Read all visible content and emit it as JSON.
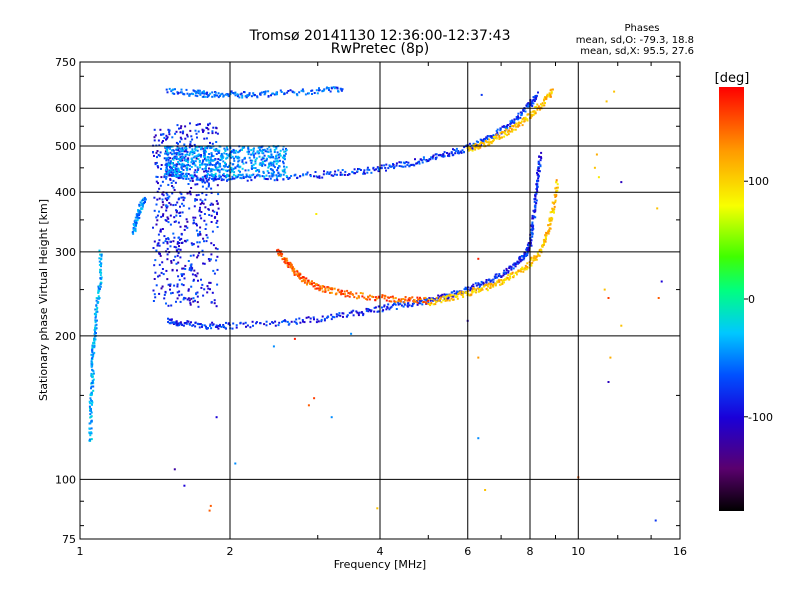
{
  "chart_data": {
    "type": "scatter",
    "title": "Tromsø 20141130 12:36:00-12:37:43",
    "subtitle": "RwPretec (8p)",
    "xlabel": "Frequency [MHz]",
    "ylabel": "Stationary phase Virtual Height [km]",
    "x_scale": "log",
    "y_scale": "log",
    "xlim": [
      1,
      16
    ],
    "ylim": [
      75,
      750
    ],
    "x_ticks": [
      1,
      2,
      4,
      6,
      8,
      10,
      16
    ],
    "x_tick_labels": [
      "1",
      "2",
      "4",
      "6",
      "8",
      "10",
      "16"
    ],
    "y_ticks": [
      75,
      100,
      200,
      300,
      400,
      500,
      600,
      750
    ],
    "y_tick_labels": [
      "75",
      "100",
      "200",
      "300",
      "400",
      "500",
      "600",
      "750"
    ],
    "grid": true,
    "stats": {
      "heading": "Phases",
      "line_o": "mean, sd,O: -79.3, 18.8",
      "line_x": "mean, sd,X:  95.5, 27.6"
    },
    "colorbar": {
      "label": "[deg]",
      "range": [
        -180,
        180
      ],
      "ticks": [
        100,
        0,
        -100
      ],
      "tick_labels": [
        "100",
        "0",
        "-100"
      ]
    },
    "traces": [
      {
        "name": "",
        "phase": -95,
        "points": [
          [
            1.5,
            215
          ],
          [
            1.6,
            212
          ],
          [
            1.8,
            210
          ],
          [
            2.0,
            210
          ],
          [
            2.5,
            213
          ],
          [
            3.0,
            217
          ],
          [
            3.5,
            222
          ],
          [
            4.0,
            228
          ],
          [
            4.5,
            233
          ],
          [
            5.0,
            237
          ],
          [
            5.5,
            243
          ],
          [
            6.0,
            250
          ],
          [
            6.5,
            258
          ],
          [
            7.0,
            268
          ],
          [
            7.5,
            282
          ],
          [
            7.8,
            295
          ],
          [
            8.0,
            310
          ],
          [
            8.1,
            340
          ],
          [
            8.2,
            380
          ],
          [
            8.3,
            430
          ],
          [
            8.4,
            480
          ]
        ]
      },
      {
        "name": "",
        "phase": 110,
        "points": [
          [
            5.0,
            235
          ],
          [
            5.5,
            240
          ],
          [
            6.0,
            246
          ],
          [
            6.5,
            252
          ],
          [
            7.0,
            260
          ],
          [
            7.5,
            270
          ],
          [
            8.0,
            283
          ],
          [
            8.4,
            300
          ],
          [
            8.7,
            330
          ],
          [
            8.9,
            370
          ],
          [
            9.1,
            420
          ]
        ]
      },
      {
        "name": "",
        "phase": 150,
        "points": [
          [
            2.5,
            300
          ],
          [
            2.6,
            285
          ],
          [
            2.7,
            272
          ],
          [
            2.8,
            262
          ],
          [
            3.0,
            253
          ],
          [
            3.2,
            248
          ],
          [
            3.5,
            244
          ],
          [
            4.0,
            240
          ],
          [
            4.5,
            238
          ],
          [
            5.0,
            237
          ]
        ]
      },
      {
        "name": "",
        "phase": -90,
        "points": [
          [
            1.5,
            440
          ],
          [
            1.6,
            432
          ],
          [
            1.8,
            428
          ],
          [
            2.0,
            428
          ],
          [
            2.5,
            430
          ],
          [
            3.0,
            435
          ],
          [
            3.5,
            440
          ],
          [
            4.0,
            448
          ],
          [
            4.5,
            458
          ],
          [
            5.0,
            470
          ],
          [
            5.5,
            482
          ],
          [
            6.0,
            495
          ],
          [
            6.5,
            515
          ],
          [
            7.0,
            540
          ],
          [
            7.5,
            570
          ],
          [
            8.0,
            610
          ],
          [
            8.3,
            640
          ]
        ]
      },
      {
        "name": "",
        "phase": 110,
        "points": [
          [
            6.0,
            492
          ],
          [
            6.5,
            505
          ],
          [
            7.0,
            525
          ],
          [
            7.5,
            550
          ],
          [
            8.0,
            580
          ],
          [
            8.5,
            615
          ],
          [
            8.9,
            655
          ]
        ]
      },
      {
        "name": "",
        "phase": -75,
        "points": [
          [
            1.5,
            650
          ],
          [
            1.7,
            645
          ],
          [
            1.8,
            642
          ],
          [
            2.0,
            642
          ],
          [
            2.2,
            640
          ],
          [
            2.5,
            645
          ],
          [
            3.0,
            652
          ],
          [
            3.4,
            660
          ]
        ]
      },
      {
        "name": "",
        "phase": -50,
        "points": [
          [
            1.05,
            120
          ],
          [
            1.05,
            140
          ],
          [
            1.06,
            160
          ],
          [
            1.06,
            180
          ],
          [
            1.07,
            200
          ],
          [
            1.08,
            230
          ],
          [
            1.1,
            260
          ],
          [
            1.1,
            300
          ]
        ]
      },
      {
        "name": "",
        "phase": -60,
        "points": [
          [
            1.28,
            330
          ],
          [
            1.3,
            350
          ],
          [
            1.32,
            370
          ],
          [
            1.35,
            390
          ]
        ]
      }
    ],
    "clusters": [
      {
        "name": "",
        "phase": -100,
        "x_range": [
          1.4,
          1.9
        ],
        "y_range": [
          230,
          560
        ]
      },
      {
        "name": "",
        "phase": -60,
        "x_range": [
          1.48,
          2.6
        ],
        "y_range": [
          430,
          500
        ]
      }
    ],
    "scatter_points": [
      {
        "x": 1.55,
        "y": 105,
        "phase": -130
      },
      {
        "x": 1.62,
        "y": 97,
        "phase": -110
      },
      {
        "x": 1.83,
        "y": 88,
        "phase": 150
      },
      {
        "x": 1.82,
        "y": 86,
        "phase": 150
      },
      {
        "x": 1.88,
        "y": 135,
        "phase": -110
      },
      {
        "x": 2.05,
        "y": 108,
        "phase": -60
      },
      {
        "x": 2.45,
        "y": 190,
        "phase": -60
      },
      {
        "x": 2.7,
        "y": 197,
        "phase": 170
      },
      {
        "x": 2.88,
        "y": 143,
        "phase": 150
      },
      {
        "x": 2.95,
        "y": 148,
        "phase": 160
      },
      {
        "x": 2.98,
        "y": 360,
        "phase": 90
      },
      {
        "x": 3.2,
        "y": 135,
        "phase": -60
      },
      {
        "x": 3.5,
        "y": 202,
        "phase": -60
      },
      {
        "x": 3.95,
        "y": 87,
        "phase": 110
      },
      {
        "x": 6.0,
        "y": 215,
        "phase": -120
      },
      {
        "x": 6.3,
        "y": 290,
        "phase": 170
      },
      {
        "x": 6.3,
        "y": 180,
        "phase": 130
      },
      {
        "x": 6.3,
        "y": 122,
        "phase": -60
      },
      {
        "x": 6.4,
        "y": 640,
        "phase": -90
      },
      {
        "x": 6.5,
        "y": 95,
        "phase": 110
      },
      {
        "x": 10.0,
        "y": 101,
        "phase": 150
      },
      {
        "x": 10.8,
        "y": 450,
        "phase": 110
      },
      {
        "x": 10.9,
        "y": 480,
        "phase": 120
      },
      {
        "x": 11.0,
        "y": 430,
        "phase": 90
      },
      {
        "x": 11.3,
        "y": 250,
        "phase": 110
      },
      {
        "x": 11.4,
        "y": 620,
        "phase": 110
      },
      {
        "x": 11.5,
        "y": 240,
        "phase": 160
      },
      {
        "x": 11.5,
        "y": 160,
        "phase": -120
      },
      {
        "x": 11.6,
        "y": 180,
        "phase": 120
      },
      {
        "x": 11.8,
        "y": 650,
        "phase": 110
      },
      {
        "x": 12.2,
        "y": 420,
        "phase": -120
      },
      {
        "x": 12.2,
        "y": 210,
        "phase": 110
      },
      {
        "x": 14.4,
        "y": 370,
        "phase": 110
      },
      {
        "x": 14.5,
        "y": 240,
        "phase": 150
      },
      {
        "x": 14.7,
        "y": 260,
        "phase": -110
      },
      {
        "x": 14.3,
        "y": 82,
        "phase": -90
      }
    ]
  }
}
